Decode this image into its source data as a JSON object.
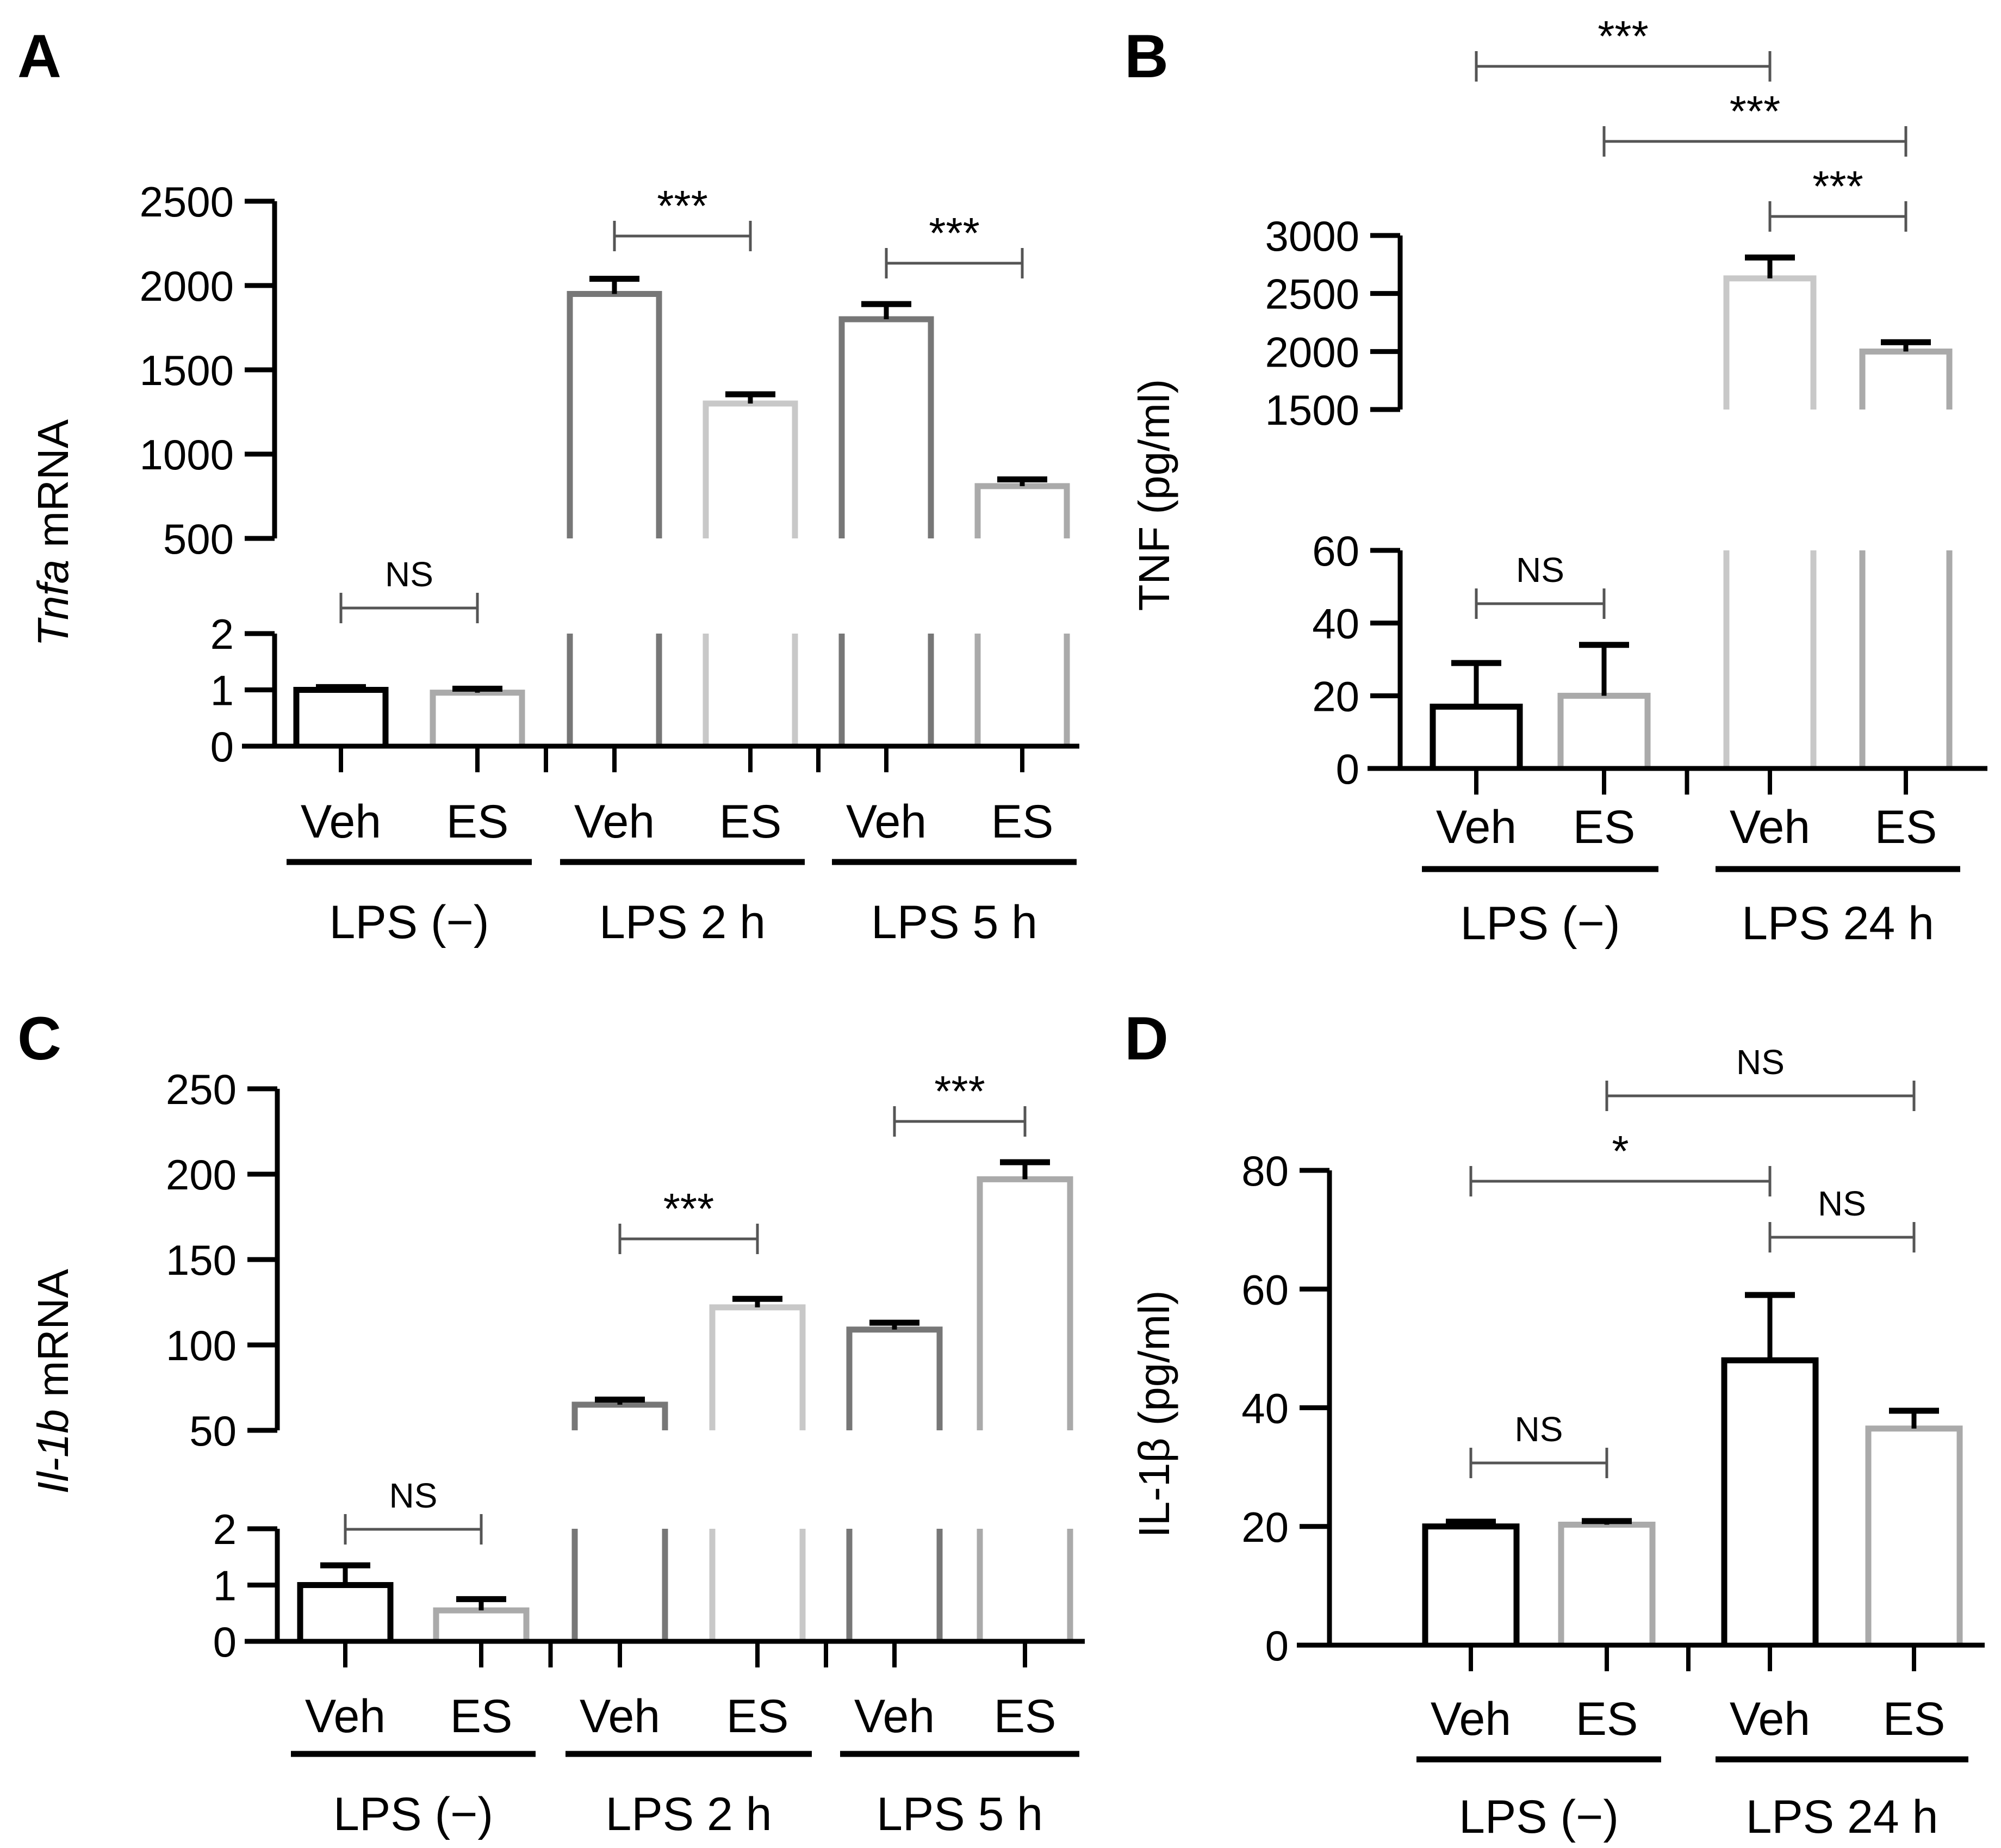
{
  "colors": {
    "axis": "#000000",
    "black": "#000000",
    "dark": "#777777",
    "mid": "#999999",
    "light": "#c8c8c8",
    "grey": "#aaaaaa"
  },
  "chart_data": [
    {
      "panel": "A",
      "type": "bar",
      "broken_axis": true,
      "ylabel_italic": "Tnfa",
      "ylabel_rest": " mRNA",
      "lower": {
        "ylim": [
          0,
          2
        ],
        "ticks": [
          "0",
          "1",
          "2"
        ]
      },
      "upper": {
        "ylim": [
          500,
          2500
        ],
        "ticks": [
          "500",
          "1000",
          "1500",
          "2000",
          "2500"
        ]
      },
      "bars": [
        {
          "label": "Veh",
          "group": "LPS (−)",
          "value": 1.0,
          "err": 0.05,
          "color": "black"
        },
        {
          "label": "ES",
          "group": "LPS (−)",
          "value": 0.95,
          "err": 0.07,
          "color": "grey"
        },
        {
          "label": "Veh",
          "group": "LPS 2 h",
          "value": 1950,
          "err": 90,
          "color": "dark"
        },
        {
          "label": "ES",
          "group": "LPS 2 h",
          "value": 1300,
          "err": 55,
          "color": "light"
        },
        {
          "label": "Veh",
          "group": "LPS 5 h",
          "value": 1800,
          "err": 90,
          "color": "dark"
        },
        {
          "label": "ES",
          "group": "LPS 5 h",
          "value": 810,
          "err": 40,
          "color": "grey"
        }
      ],
      "groups": [
        "LPS (−)",
        "LPS 2 h",
        "LPS 5 h"
      ],
      "significance": [
        {
          "from": 0,
          "to": 1,
          "label": "NS"
        },
        {
          "from": 2,
          "to": 3,
          "label": "***"
        },
        {
          "from": 4,
          "to": 5,
          "label": "***"
        }
      ]
    },
    {
      "panel": "B",
      "type": "bar",
      "broken_axis": true,
      "ylabel": "TNF (pg/ml)",
      "lower": {
        "ylim": [
          0,
          60
        ],
        "ticks": [
          "0",
          "20",
          "40",
          "60"
        ]
      },
      "upper": {
        "ylim": [
          1500,
          3000
        ],
        "ticks": [
          "1500",
          "2000",
          "2500",
          "3000"
        ]
      },
      "bars": [
        {
          "label": "Veh",
          "group": "LPS (−)",
          "value": 17,
          "err": 12,
          "color": "black"
        },
        {
          "label": "ES",
          "group": "LPS (−)",
          "value": 20,
          "err": 14,
          "color": "grey"
        },
        {
          "label": "Veh",
          "group": "LPS 24 h",
          "value": 2630,
          "err": 180,
          "color": "light"
        },
        {
          "label": "ES",
          "group": "LPS 24 h",
          "value": 2000,
          "err": 80,
          "color": "grey"
        }
      ],
      "groups": [
        "LPS (−)",
        "LPS 24 h"
      ],
      "significance": [
        {
          "from": 0,
          "to": 1,
          "label": "NS"
        },
        {
          "from": 2,
          "to": 3,
          "label": "***"
        },
        {
          "from": 1,
          "to": 3,
          "label": "***"
        },
        {
          "from": 0,
          "to": 2,
          "label": "***"
        }
      ]
    },
    {
      "panel": "C",
      "type": "bar",
      "broken_axis": true,
      "ylabel_italic": "Il-1b",
      "ylabel_rest": " mRNA",
      "lower": {
        "ylim": [
          0,
          2
        ],
        "ticks": [
          "0",
          "1",
          "2"
        ]
      },
      "upper": {
        "ylim": [
          50,
          250
        ],
        "ticks": [
          "50",
          "100",
          "150",
          "200",
          "250"
        ]
      },
      "bars": [
        {
          "label": "Veh",
          "group": "LPS (−)",
          "value": 1.0,
          "err": 0.35,
          "color": "black"
        },
        {
          "label": "ES",
          "group": "LPS (−)",
          "value": 0.55,
          "err": 0.2,
          "color": "grey"
        },
        {
          "label": "Veh",
          "group": "LPS 2 h",
          "value": 65,
          "err": 3,
          "color": "dark"
        },
        {
          "label": "ES",
          "group": "LPS 2 h",
          "value": 122,
          "err": 5,
          "color": "light"
        },
        {
          "label": "Veh",
          "group": "LPS 5 h",
          "value": 109,
          "err": 4,
          "color": "dark"
        },
        {
          "label": "ES",
          "group": "LPS 5 h",
          "value": 197,
          "err": 10,
          "color": "grey"
        }
      ],
      "groups": [
        "LPS (−)",
        "LPS 2 h",
        "LPS 5 h"
      ],
      "significance": [
        {
          "from": 0,
          "to": 1,
          "label": "NS"
        },
        {
          "from": 2,
          "to": 3,
          "label": "***"
        },
        {
          "from": 4,
          "to": 5,
          "label": "***"
        }
      ]
    },
    {
      "panel": "D",
      "type": "bar",
      "broken_axis": false,
      "ylabel": "IL-1β (pg/ml)",
      "ylim": [
        0,
        80
      ],
      "ticks": [
        "0",
        "20",
        "40",
        "60",
        "80"
      ],
      "bars": [
        {
          "label": "Veh",
          "group": "LPS (−)",
          "value": 20,
          "err": 0.8,
          "color": "black"
        },
        {
          "label": "ES",
          "group": "LPS (−)",
          "value": 20.3,
          "err": 0.6,
          "color": "grey"
        },
        {
          "label": "Veh",
          "group": "LPS 24 h",
          "value": 48,
          "err": 11,
          "color": "black"
        },
        {
          "label": "ES",
          "group": "LPS 24 h",
          "value": 36.5,
          "err": 3,
          "color": "grey"
        }
      ],
      "groups": [
        "LPS (−)",
        "LPS 24 h"
      ],
      "significance": [
        {
          "from": 0,
          "to": 1,
          "label": "NS"
        },
        {
          "from": 2,
          "to": 3,
          "label": "NS"
        },
        {
          "from": 0,
          "to": 2,
          "label": "*"
        },
        {
          "from": 1,
          "to": 3,
          "label": "NS"
        }
      ]
    }
  ]
}
